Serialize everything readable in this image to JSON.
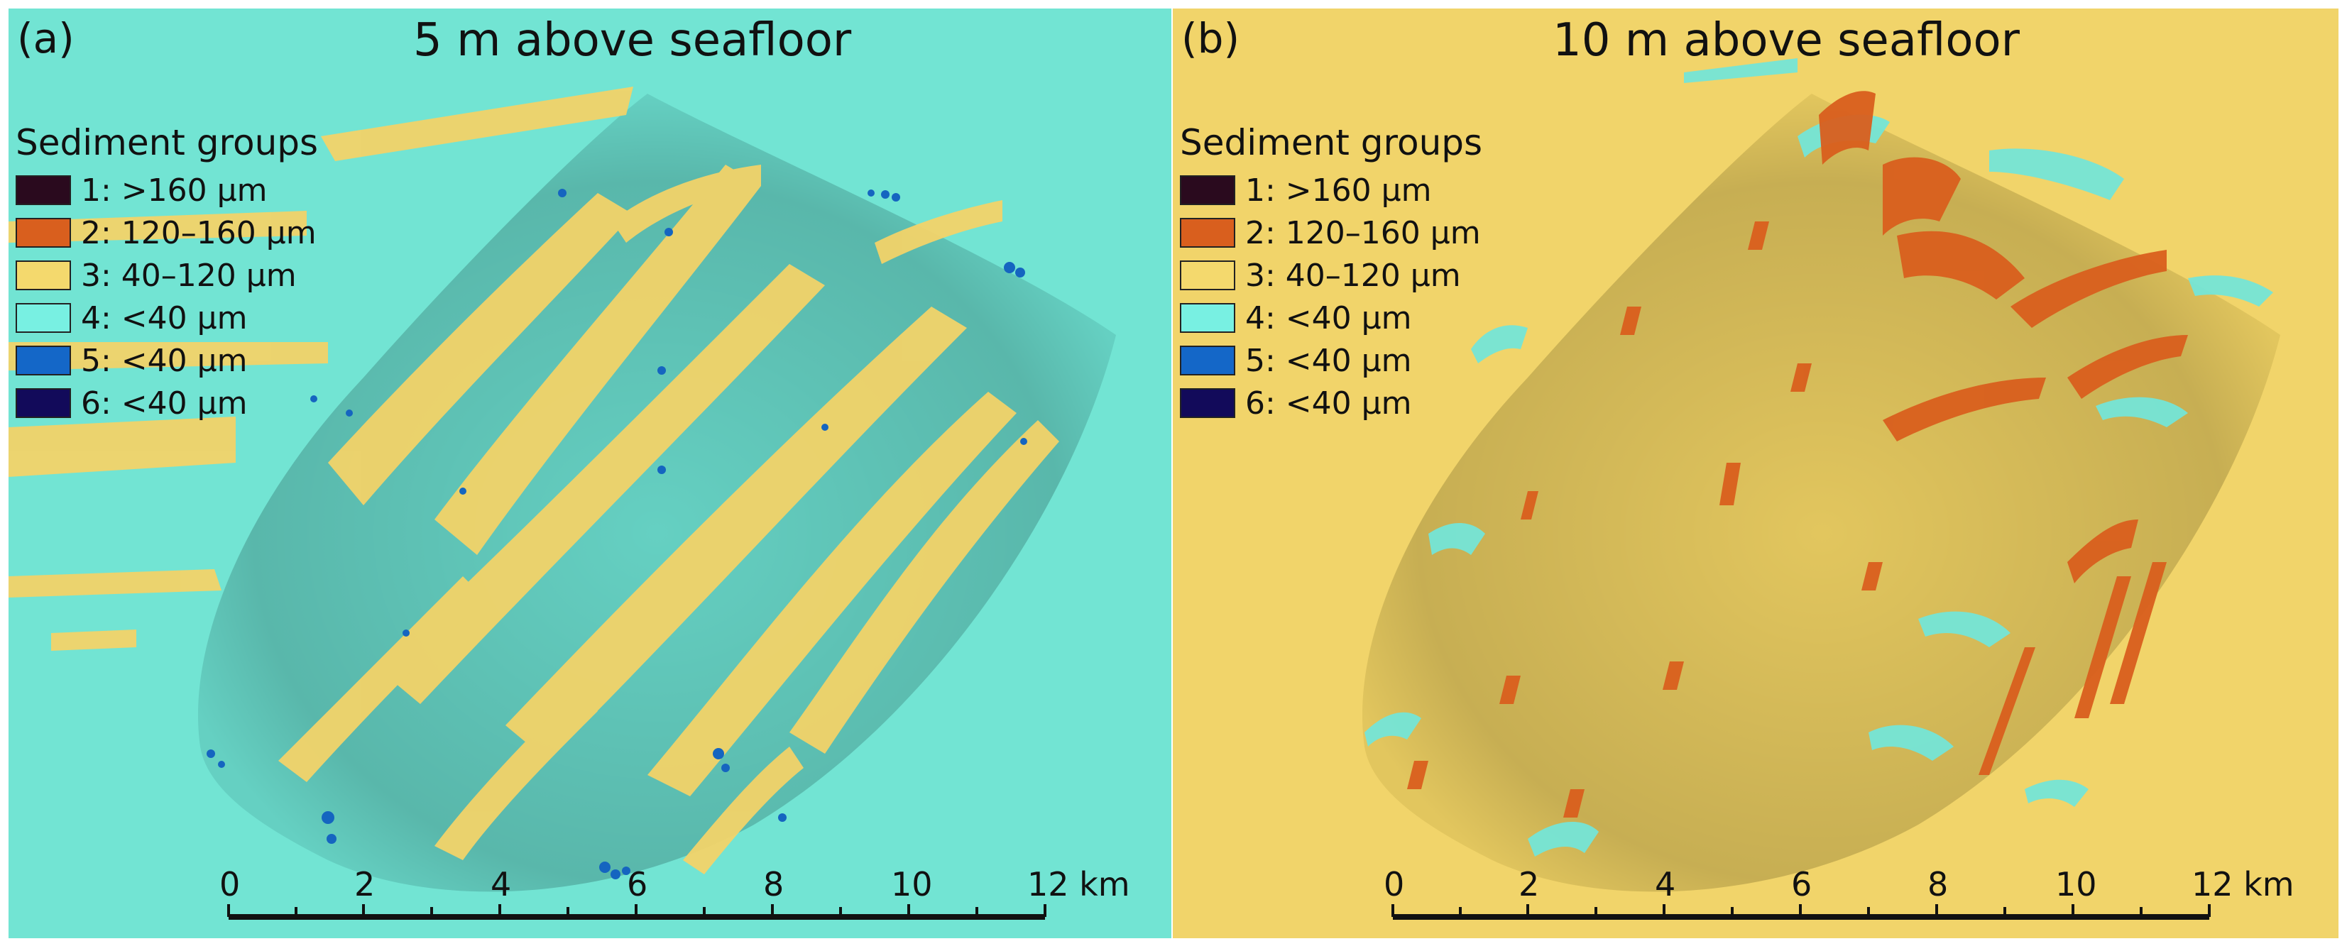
{
  "colors": {
    "background_a": "#72e4d3",
    "background_b": "#f1d46a",
    "sand": "#f2d369",
    "silt": "#74e5d7",
    "blue": "#1565c0",
    "orange": "#d95f1e"
  },
  "panels": [
    {
      "tag": "(a)",
      "title": "5 m above seafloor",
      "legend_title": "Sediment groups",
      "legend": [
        {
          "label": "1: >160 µm",
          "color": "#2a0a1e"
        },
        {
          "label": "2: 120–160 µm",
          "color": "#d95f1e"
        },
        {
          "label": "3: 40–120 µm",
          "color": "#f4d96d"
        },
        {
          "label": "4: <40 µm",
          "color": "#78f0e2"
        },
        {
          "label": "5: <40 µm",
          "color": "#1467c8"
        },
        {
          "label": "6: <40 µm",
          "color": "#120a5a"
        }
      ],
      "scale": {
        "ticks": [
          "0",
          "2",
          "4",
          "6",
          "8",
          "10",
          "12 km"
        ]
      }
    },
    {
      "tag": "(b)",
      "title": "10 m above seafloor",
      "legend_title": "Sediment groups",
      "legend": [
        {
          "label": "1: >160 µm",
          "color": "#2a0a1e"
        },
        {
          "label": "2: 120–160 µm",
          "color": "#d95f1e"
        },
        {
          "label": "3: 40–120 µm",
          "color": "#f4d96d"
        },
        {
          "label": "4: <40 µm",
          "color": "#78f0e2"
        },
        {
          "label": "5: <40 µm",
          "color": "#1467c8"
        },
        {
          "label": "6: <40 µm",
          "color": "#120a5a"
        }
      ],
      "scale": {
        "ticks": [
          "0",
          "2",
          "4",
          "6",
          "8",
          "10",
          "12 km"
        ]
      }
    }
  ]
}
